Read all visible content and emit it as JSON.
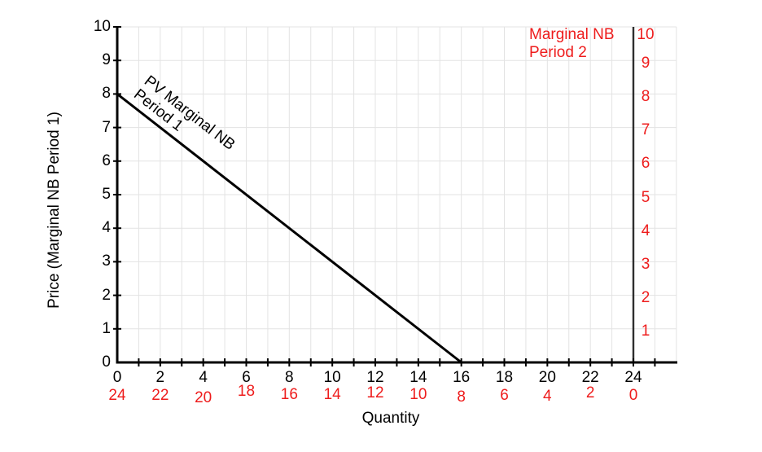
{
  "chart_data": {
    "type": "line",
    "title": "",
    "xlabel": "Quantity",
    "ylabel": "Price (Marginal NB Period 1)",
    "grid": "on",
    "xlim": [
      0,
      26
    ],
    "ylim": [
      0,
      10
    ],
    "axes": {
      "x_black": {
        "color": "#000000",
        "tick_labels": [
          "0",
          "2",
          "4",
          "6",
          "8",
          "10",
          "12",
          "14",
          "16",
          "18",
          "20",
          "22",
          "24"
        ],
        "labeled_every_units": 2,
        "minor_tick_every_units": 1,
        "minor_ticks_from": 1,
        "minor_ticks_to": 25
      },
      "x_red": {
        "color": "#ee1c1c",
        "tick_labels": [
          "24",
          "22",
          "20",
          "18",
          "16",
          "14",
          "12",
          "10",
          "8",
          "6",
          "4",
          "2",
          "0"
        ],
        "description": "Period 2 quantity, reads right to left"
      },
      "y_black": {
        "color": "#000000",
        "tick_labels": [
          "10",
          "9",
          "8",
          "7",
          "6",
          "5",
          "4",
          "3",
          "2",
          "1",
          "0"
        ]
      },
      "y_red": {
        "color": "#ee1c1c",
        "tick_labels": [
          "10",
          "9",
          "8",
          "7",
          "6",
          "5",
          "4",
          "3",
          "2",
          "1"
        ],
        "at_x_unit": 24
      }
    },
    "series": [
      {
        "name": "PV Marginal NB Period 1",
        "label_line1": "PV Marginal NB",
        "label_line2": "Period 1",
        "color": "#000000",
        "x": [
          0,
          16
        ],
        "y": [
          8,
          0
        ]
      }
    ],
    "annotations": [
      {
        "name": "Marginal NB Period 2",
        "label_line1": "Marginal NB",
        "label_line2": "Period 2",
        "color": "#ee1c1c",
        "vertical_line_at_x": 24,
        "vertical_line_color": "#2e2e2e"
      }
    ],
    "colors": {
      "red": "#ee1c1c",
      "black": "#000000",
      "grid": "#e3e3e3",
      "period2_axis": "#2e2e2e"
    }
  }
}
